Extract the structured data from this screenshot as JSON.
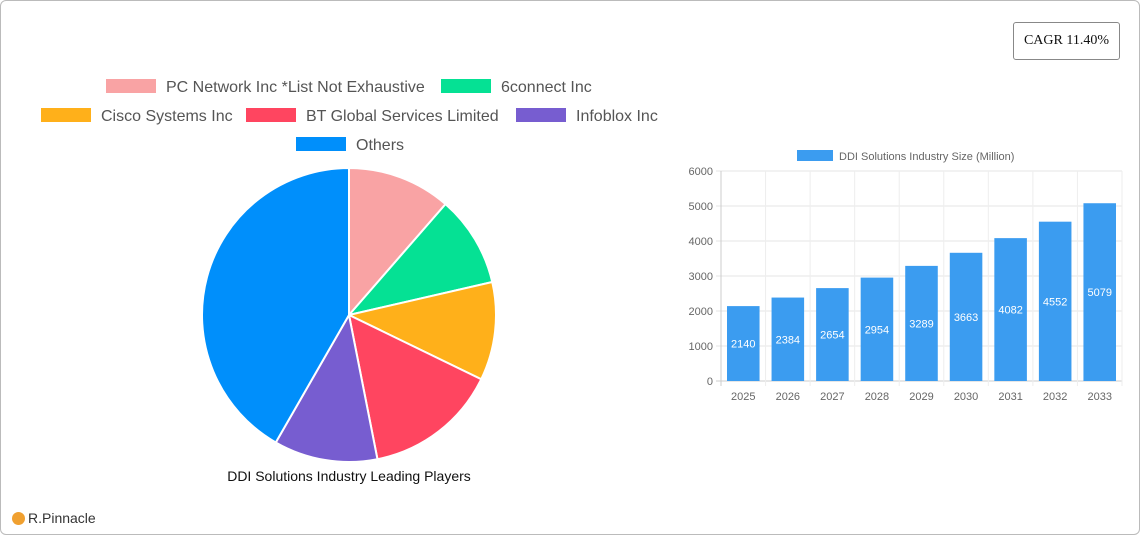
{
  "cagr_label": "CAGR 11.40%",
  "brand": "R.Pinnacle",
  "chart_data": [
    {
      "type": "pie",
      "title": "DDI Solutions Industry Leading Players",
      "legend_position": "top",
      "slices": [
        {
          "name": "PC Network Inc *List Not Exhaustive",
          "value": 11.4,
          "color": "#f9a3a4"
        },
        {
          "name": "6connect Inc",
          "value": 10.0,
          "color": "#05e194"
        },
        {
          "name": "Cisco Systems Inc",
          "value": 10.8,
          "color": "#ffb01a"
        },
        {
          "name": "BT Global Services Limited",
          "value": 14.7,
          "color": "#ff4560"
        },
        {
          "name": "Infoblox Inc",
          "value": 11.4,
          "color": "#775dd0"
        },
        {
          "name": "Others",
          "value": 41.7,
          "color": "#008ffb"
        }
      ]
    },
    {
      "type": "bar",
      "legend_position": "top",
      "series": [
        {
          "name": "DDI Solutions Industry Size (Million)",
          "values": [
            2140,
            2384,
            2654,
            2954,
            3289,
            3663,
            4082,
            4552,
            5079
          ],
          "color": "#3b9cf0"
        }
      ],
      "categories": [
        "2025",
        "2026",
        "2027",
        "2028",
        "2029",
        "2030",
        "2031",
        "2032",
        "2033"
      ],
      "ylim": [
        0,
        6000
      ],
      "yticks": [
        0,
        1000,
        2000,
        3000,
        4000,
        5000,
        6000
      ],
      "grid": true
    }
  ]
}
